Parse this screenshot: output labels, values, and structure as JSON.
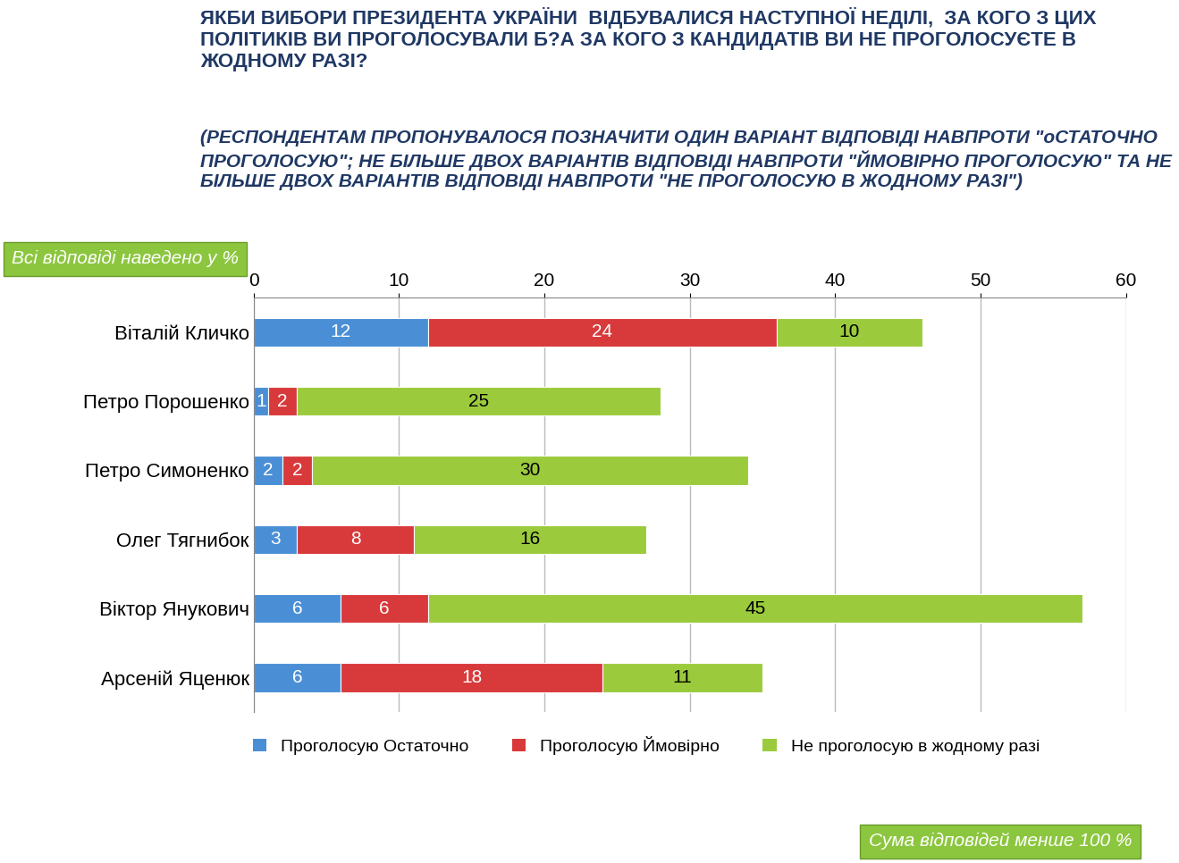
{
  "chart_data": {
    "type": "bar",
    "orientation": "horizontal",
    "stacked": true,
    "data_labels": true,
    "grid": true,
    "legend": "bottom",
    "title": "ЯКБИ ВИБОРИ ПРЕЗИДЕНТА УКРАЇНИ  ВІДБУВАЛИСЯ НАСТУПНОЇ НЕДІЛІ,  ЗА КОГО З ЦИХ ПОЛІТИКІВ ВИ ПРОГОЛОСУВАЛИ Б?А ЗА КОГО З КАНДИДАТІВ ВИ НЕ ПРОГОЛОСУЄТЕ В ЖОДНОМУ РАЗІ?",
    "subtitle": "(РЕСПОНДЕНТАМ ПРОПОНУВАЛОСЯ ПОЗНАЧИТИ ОДИН ВАРІАНТ ВІДПОВІДІ НАВПРОТИ \"оСТАТОЧНО ПРОГОЛОСУЮ\"; НЕ БІЛЬШЕ ДВОХ ВАРІАНТІВ ВІДПОВІДІ НАВПРОТИ \"ЙМОВІРНО ПРОГОЛОСУЮ\" ТА НЕ БІЛЬШЕ ДВОХ ВАРІАНТІВ ВІДПОВІДІ НАВПРОТИ \"НЕ ПРОГОЛОСУЮ В ЖОДНОМУ РАЗІ\")",
    "annotations": [
      "Всі відповіді наведено у %",
      "Сума відповідей менше 100 %"
    ],
    "categories": [
      "Віталій Кличко",
      "Петро Порошенко",
      "Петро Симоненко",
      "Олег Тягнибок",
      "Віктор Янукович",
      "Арсеній Яценюк"
    ],
    "series": [
      {
        "name": "Проголосую Остаточно",
        "color": "#4a8fd6",
        "values": [
          12,
          1,
          2,
          3,
          6,
          6
        ]
      },
      {
        "name": "Проголосую Ймовірно",
        "color": "#d8393b",
        "values": [
          24,
          2,
          2,
          8,
          6,
          18
        ]
      },
      {
        "name": "Не проголосую в жодному разі",
        "color": "#9bcb3c",
        "values": [
          10,
          25,
          30,
          16,
          45,
          11
        ]
      }
    ],
    "xlim": [
      0,
      60
    ],
    "xticks": [
      0,
      10,
      20,
      30,
      40,
      50,
      60
    ]
  }
}
